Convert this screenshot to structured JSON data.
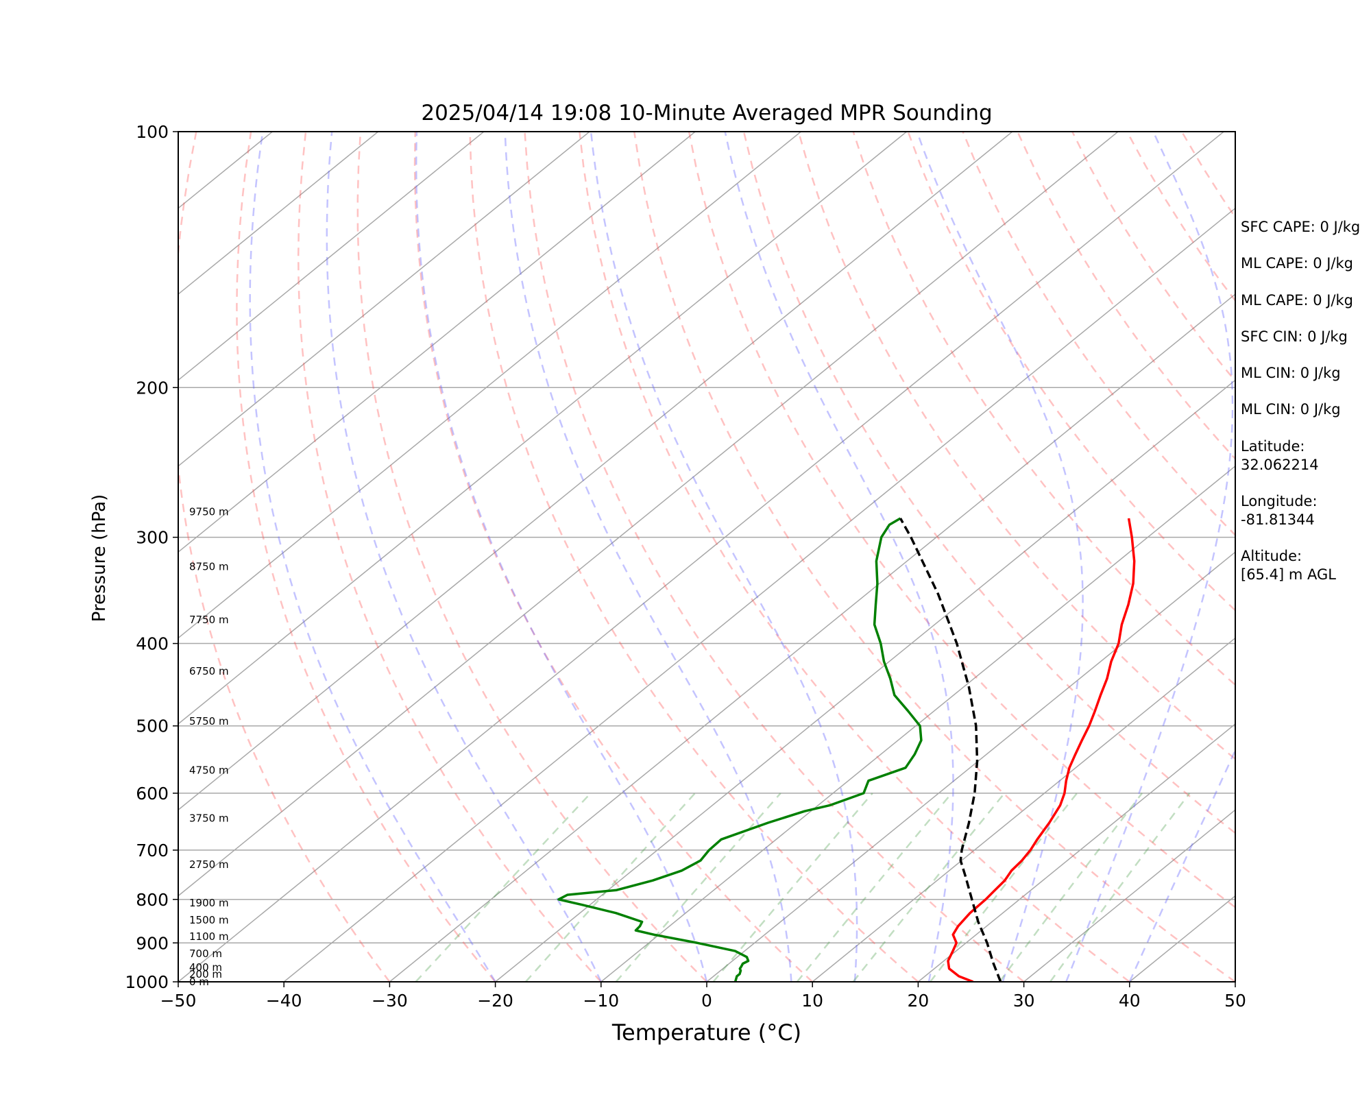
{
  "chart_data": {
    "type": "skew-t",
    "title": "2025/04/14 19:08 10-Minute Averaged MPR Sounding",
    "xlabel": "Temperature (°C)",
    "ylabel": "Pressure (hPa)",
    "xlim": [
      -50,
      50
    ],
    "ylim": [
      1000,
      100
    ],
    "yscale": "log",
    "grid": true,
    "x_ticks": [
      "−50",
      "−40",
      "−30",
      "−20",
      "−10",
      "0",
      "10",
      "20",
      "30",
      "40",
      "50"
    ],
    "y_ticks": [
      "100",
      "200",
      "300",
      "400",
      "500",
      "600",
      "700",
      "800",
      "900",
      "1000"
    ],
    "height_labels": [
      {
        "label": "0 m",
        "p": 1000
      },
      {
        "label": "200 m",
        "p": 980
      },
      {
        "label": "400 m",
        "p": 962
      },
      {
        "label": "700 m",
        "p": 927
      },
      {
        "label": "1100 m",
        "p": 885
      },
      {
        "label": "1500 m",
        "p": 846
      },
      {
        "label": "1900 m",
        "p": 808
      },
      {
        "label": "2750 m",
        "p": 728
      },
      {
        "label": "3750 m",
        "p": 642
      },
      {
        "label": "4750 m",
        "p": 564
      },
      {
        "label": "5750 m",
        "p": 494
      },
      {
        "label": "6750 m",
        "p": 431
      },
      {
        "label": "7750 m",
        "p": 375
      },
      {
        "label": "8750 m",
        "p": 325
      },
      {
        "label": "9750 m",
        "p": 280
      }
    ],
    "series": [
      {
        "color": "#ff0000",
        "p": [
          1000,
          985,
          965,
          945,
          920,
          900,
          880,
          860,
          830,
          800,
          780,
          760,
          740,
          720,
          700,
          680,
          650,
          620,
          600,
          580,
          560,
          540,
          520,
          500,
          480,
          460,
          440,
          420,
          400,
          380,
          360,
          340,
          320,
          300,
          285
        ],
        "t": [
          25.2,
          23.2,
          21.4,
          20.4,
          19.7,
          19.1,
          17.8,
          17.3,
          16.9,
          16.8,
          16.6,
          16.4,
          15.9,
          15.7,
          15.3,
          14.7,
          13.9,
          12.9,
          11.9,
          10.6,
          9.4,
          8.4,
          7.4,
          6.4,
          5.2,
          3.9,
          2.6,
          1.0,
          -0.4,
          -2.3,
          -4.0,
          -6.0,
          -8.5,
          -11.5,
          -14.0
        ]
      },
      {
        "color": "#008000",
        "p": [
          1000,
          994,
          985,
          979,
          970,
          965,
          960,
          952,
          945,
          935,
          920,
          900,
          880,
          870,
          860,
          850,
          830,
          812,
          800,
          790,
          780,
          760,
          740,
          720,
          700,
          680,
          650,
          630,
          620,
          600,
          580,
          560,
          540,
          520,
          500,
          480,
          460,
          440,
          420,
          400,
          380,
          360,
          340,
          320,
          300,
          290,
          285
        ],
        "t": [
          2.7,
          2.5,
          2.2,
          2.2,
          1.9,
          1.6,
          1.5,
          1.3,
          1.5,
          0.9,
          -0.9,
          -5.4,
          -10.5,
          -12.7,
          -12.8,
          -13.1,
          -16.6,
          -20.7,
          -23.6,
          -23.3,
          -19.2,
          -16.9,
          -15.3,
          -14.7,
          -15.1,
          -15.2,
          -12.7,
          -10.6,
          -8.9,
          -7.1,
          -8.1,
          -6.1,
          -6.8,
          -7.8,
          -9.6,
          -12.5,
          -15.6,
          -17.9,
          -20.5,
          -22.9,
          -25.7,
          -27.9,
          -30.2,
          -32.9,
          -35.2,
          -35.9,
          -35.6
        ]
      },
      {
        "color": "#000000",
        "dash": "dashed",
        "p": [
          1000,
          950,
          900,
          850,
          800,
          750,
          720,
          700,
          650,
          600,
          550,
          500,
          450,
          400,
          350,
          300,
          285
        ],
        "t": [
          27.8,
          24.9,
          22.0,
          18.7,
          15.5,
          12.1,
          9.9,
          8.8,
          6.3,
          3.4,
          -0.1,
          -4.3,
          -9.5,
          -15.7,
          -23.2,
          -32.4,
          -35.6
        ]
      }
    ]
  },
  "info_blocks": [
    "SFC CAPE: 0 J/kg",
    "ML CAPE: 0 J/kg",
    "ML CAPE: 0 J/kg",
    "SFC CIN: 0 J/kg",
    "ML CIN: 0 J/kg",
    "ML CIN: 0 J/kg",
    "Latitude:\n32.062214",
    "Longitude:\n-81.81344",
    "Altitude:\n[65.4] m AGL"
  ]
}
